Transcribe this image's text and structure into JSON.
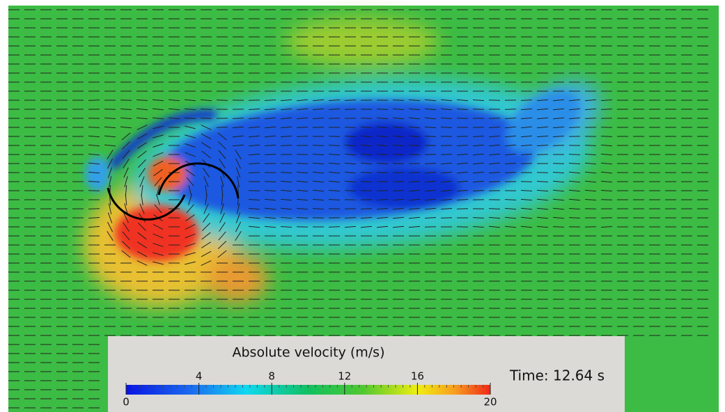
{
  "colorbar": {
    "title": "Absolute velocity (m/s)",
    "range": [
      0,
      20
    ],
    "ticks": [
      0,
      4,
      8,
      12,
      16,
      20
    ]
  },
  "time_label": "Time: 12.64 s"
}
